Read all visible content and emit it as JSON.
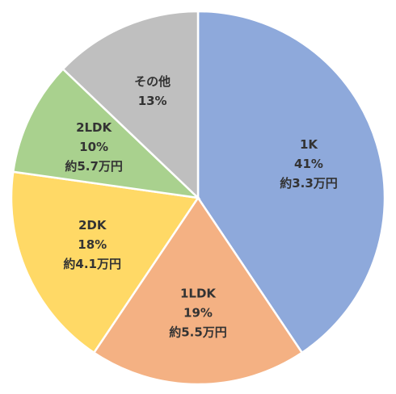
{
  "chart_data": {
    "type": "pie",
    "title": "",
    "legend": "none",
    "start": "top, clockwise",
    "slices": [
      {
        "label": "1K",
        "value": 41,
        "percent_label": "41%",
        "extra_label": "約3.3万円",
        "color": "#8EA9DB"
      },
      {
        "label": "1LDK",
        "value": 19,
        "percent_label": "19%",
        "extra_label": "約5.5万円",
        "color": "#F4B183"
      },
      {
        "label": "2DK",
        "value": 18,
        "percent_label": "18%",
        "extra_label": "約4.1万円",
        "color": "#FFD966"
      },
      {
        "label": "2LDK",
        "value": 10,
        "percent_label": "10%",
        "extra_label": "約5.7万円",
        "color": "#A9D18E"
      },
      {
        "label": "その他",
        "value": 13,
        "percent_label": "13%",
        "extra_label": "",
        "color": "#BFBFBF"
      }
    ]
  }
}
